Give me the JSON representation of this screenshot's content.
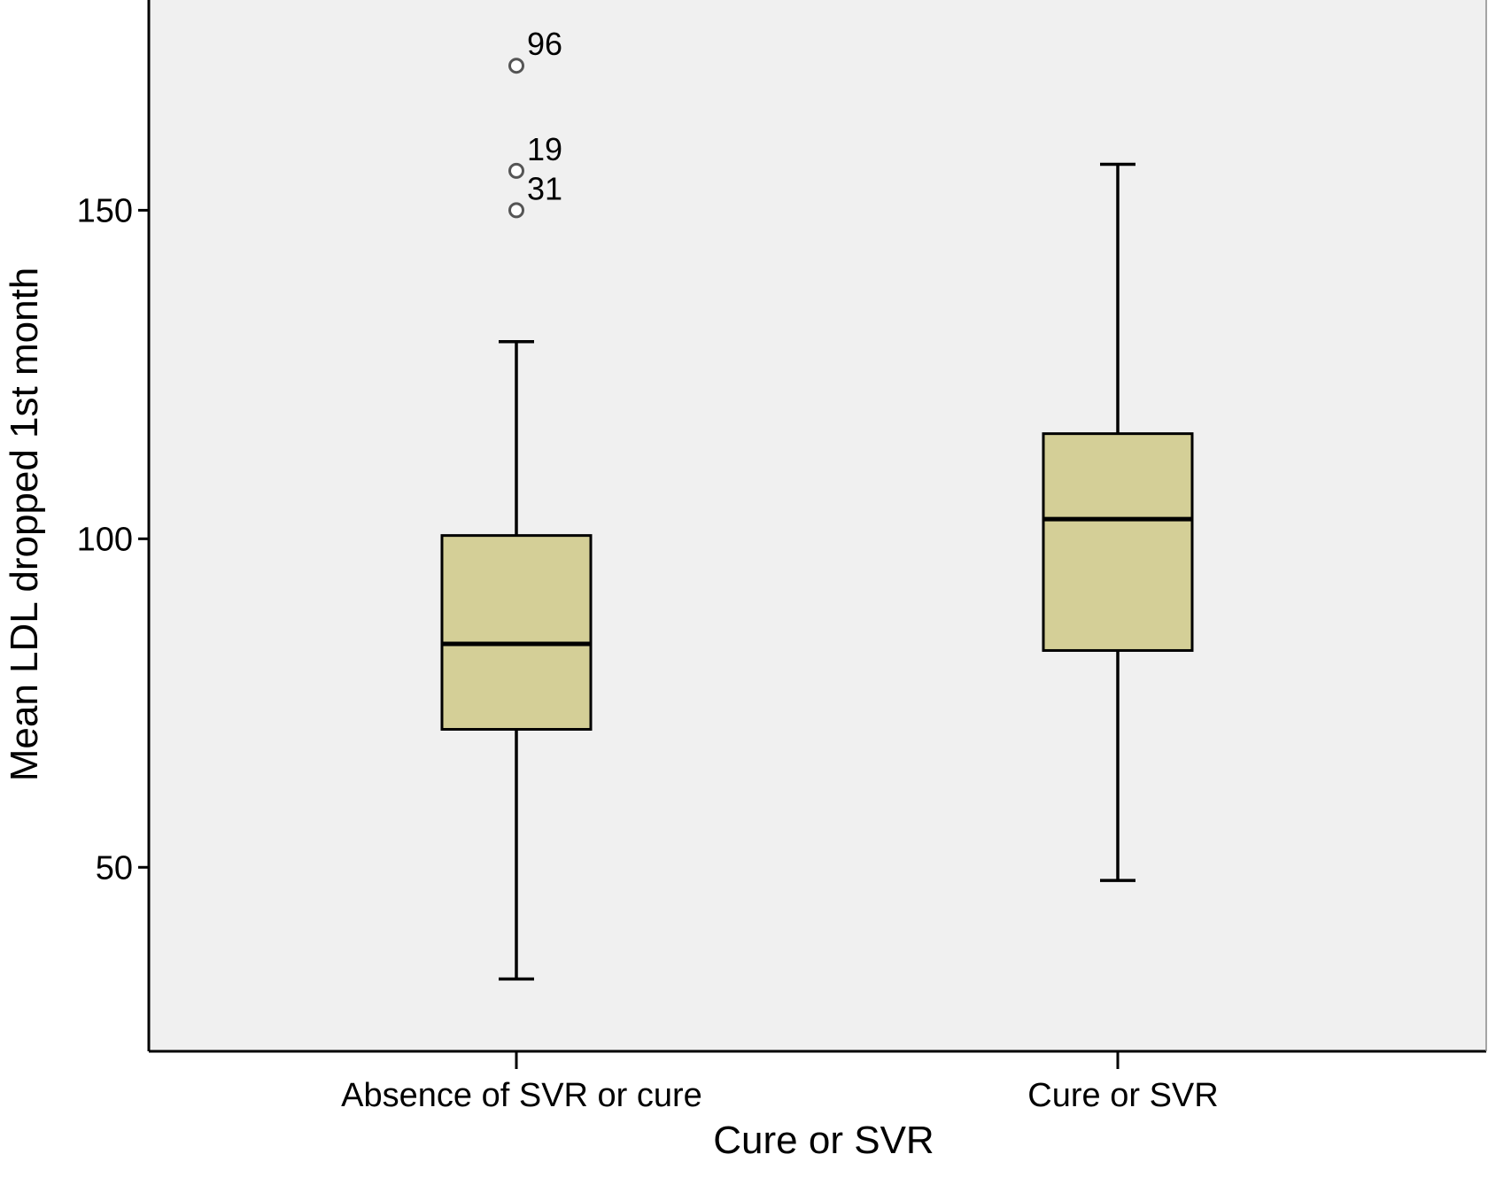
{
  "chart_data": {
    "type": "box",
    "title": "",
    "xlabel": "Cure or SVR",
    "ylabel": "Mean LDL  dropped 1st month",
    "ylim": [
      22,
      182
    ],
    "yticks": [
      50,
      100,
      150
    ],
    "grid": false,
    "categories": [
      "Absence of SVR or cure",
      "Cure or SVR"
    ],
    "boxes": [
      {
        "category": "Absence of SVR or cure",
        "whisker_low": 33,
        "q1": 71,
        "median": 84,
        "q3": 100.5,
        "whisker_high": 130,
        "outliers": [
          {
            "label": "96",
            "value": 172
          },
          {
            "label": "19",
            "value": 156
          },
          {
            "label": "31",
            "value": 150
          }
        ]
      },
      {
        "category": "Cure or SVR",
        "whisker_low": 48,
        "q1": 83,
        "median": 103,
        "q3": 116,
        "whisker_high": 157,
        "outliers": []
      }
    ]
  },
  "colors": {
    "plot_background": "#f0f0f0",
    "box_fill": "#d4cf97",
    "stroke": "#000000",
    "outlier_stroke": "#555555"
  }
}
